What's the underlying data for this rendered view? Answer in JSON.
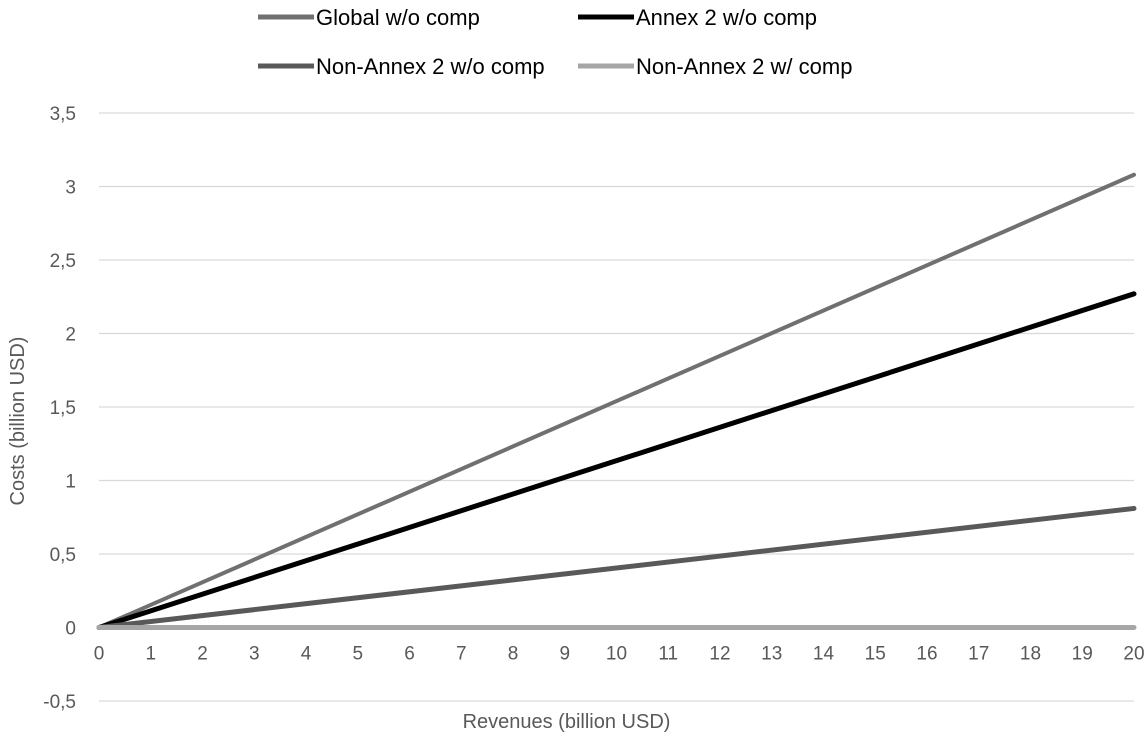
{
  "chart_data": {
    "type": "line",
    "title": "",
    "xlabel": "Revenues (billion USD)",
    "ylabel": "Costs (billion USD)",
    "xlim": [
      0,
      20
    ],
    "ylim": [
      -0.5,
      3.5
    ],
    "x_ticks": [
      0,
      1,
      2,
      3,
      4,
      5,
      6,
      7,
      8,
      9,
      10,
      11,
      12,
      13,
      14,
      15,
      16,
      17,
      18,
      19,
      20
    ],
    "y_ticks": [
      -0.5,
      0,
      0.5,
      1,
      1.5,
      2,
      2.5,
      3,
      3.5
    ],
    "y_tick_labels": [
      "-0,5",
      "0",
      "0,5",
      "1",
      "1,5",
      "2",
      "2,5",
      "3",
      "3,5"
    ],
    "grid": true,
    "legend_position": "top",
    "x": [
      0,
      20
    ],
    "series": [
      {
        "name": "Global w/o comp",
        "values": [
          0,
          3.08
        ],
        "color": "#707070"
      },
      {
        "name": "Annex 2 w/o comp",
        "values": [
          0,
          2.27
        ],
        "color": "#000000"
      },
      {
        "name": "Non-Annex 2 w/o comp",
        "values": [
          0,
          0.81
        ],
        "color": "#595959"
      },
      {
        "name": "Non-Annex 2 w/ comp",
        "values": [
          0,
          0
        ],
        "color": "#a6a6a6"
      }
    ]
  }
}
